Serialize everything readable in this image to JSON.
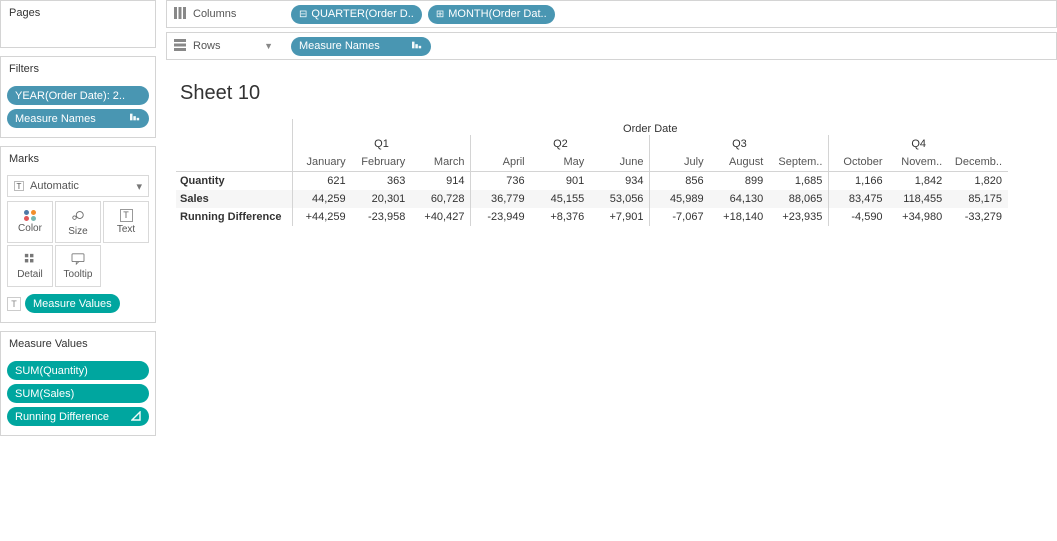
{
  "left": {
    "pages_label": "Pages",
    "filters_label": "Filters",
    "filters": {
      "year_pill": "YEAR(Order Date): 2..",
      "measure_names_pill": "Measure Names"
    },
    "marks_label": "Marks",
    "marks_type": "Automatic",
    "marks_type_icon": "T",
    "marks_buttons": {
      "color": "Color",
      "size": "Size",
      "text": "Text",
      "detail": "Detail",
      "tooltip": "Tooltip"
    },
    "measure_values_pill": "Measure Values",
    "mv_label": "Measure Values",
    "mv_items": {
      "q": "SUM(Quantity)",
      "s": "SUM(Sales)",
      "r": "Running Difference"
    }
  },
  "shelves": {
    "columns_label": "Columns",
    "rows_label": "Rows",
    "col_pill_1": "QUARTER(Order D..",
    "col_pill_2": "MONTH(Order Dat..",
    "row_pill_1": "Measure Names"
  },
  "sheet": {
    "title": "Sheet 10",
    "field_title": "Order Date",
    "quarters": [
      "Q1",
      "Q2",
      "Q3",
      "Q4"
    ],
    "months": [
      "January",
      "February",
      "March",
      "April",
      "May",
      "June",
      "July",
      "August",
      "Septem..",
      "October",
      "Novem..",
      "Decemb.."
    ],
    "row_labels": [
      "Quantity",
      "Sales",
      "Running Difference"
    ],
    "rows": [
      [
        "621",
        "363",
        "914",
        "736",
        "901",
        "934",
        "856",
        "899",
        "1,685",
        "1,166",
        "1,842",
        "1,820"
      ],
      [
        "44,259",
        "20,301",
        "60,728",
        "36,779",
        "45,155",
        "53,056",
        "45,989",
        "64,130",
        "88,065",
        "83,475",
        "118,455",
        "85,175"
      ],
      [
        "+44,259",
        "-23,958",
        "+40,427",
        "-23,949",
        "+8,376",
        "+7,901",
        "-7,067",
        "+18,140",
        "+23,935",
        "-4,590",
        "+34,980",
        "-33,279"
      ]
    ]
  },
  "colors": {
    "blue_pill": "#4996b2",
    "teal_pill": "#00a69f",
    "border": "#d4d4d4",
    "text": "#333333",
    "muted": "#666666",
    "zebra": "#f6f6f6",
    "dot1": "#4e79a7",
    "dot2": "#f28e2b",
    "dot3": "#e15759",
    "dot4": "#76b7b2"
  }
}
